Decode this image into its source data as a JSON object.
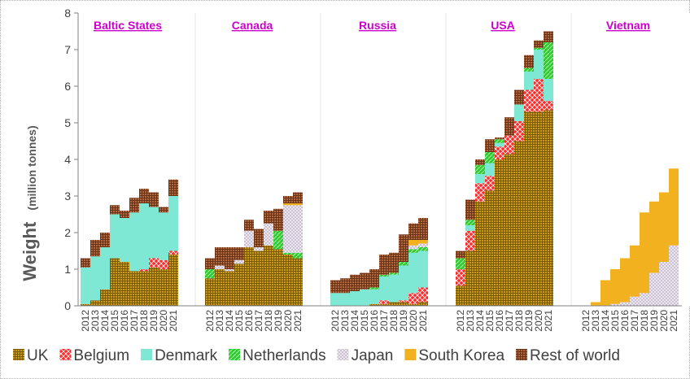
{
  "chart_data": {
    "type": "bar",
    "stacked": true,
    "ylabel": "Weight",
    "ylabel_unit": "(million tonnes)",
    "ylim": [
      0,
      8
    ],
    "yticks": [
      "0",
      "1",
      "2",
      "3",
      "4",
      "5",
      "6",
      "7",
      "8"
    ],
    "years": [
      "2012",
      "2013",
      "2014",
      "2015",
      "2016",
      "2017",
      "2018",
      "2019",
      "2020",
      "2021"
    ],
    "series": [
      {
        "name": "UK",
        "color": "#b8860b",
        "pattern": "grid"
      },
      {
        "name": "Belgium",
        "color": "#ff2020",
        "pattern": "cross"
      },
      {
        "name": "Denmark",
        "color": "#7ee8d4",
        "pattern": "solid"
      },
      {
        "name": "Netherlands",
        "color": "#22cc22",
        "pattern": "diag"
      },
      {
        "name": "Japan",
        "color": "#e4dce8",
        "pattern": "dots"
      },
      {
        "name": "South Korea",
        "color": "#f0b020",
        "pattern": "solid"
      },
      {
        "name": "Rest of world",
        "color": "#a0522d",
        "pattern": "grid"
      }
    ],
    "panels": [
      {
        "name": "Baltic States",
        "values": {
          "UK": [
            0.05,
            0.15,
            0.45,
            1.3,
            1.2,
            0.95,
            0.95,
            1.05,
            1.0,
            1.4
          ],
          "Belgium": [
            0,
            0,
            0,
            0,
            0,
            0,
            0.05,
            0.25,
            0.25,
            0.1
          ],
          "Denmark": [
            1.0,
            1.2,
            1.15,
            1.2,
            1.2,
            1.6,
            1.8,
            1.4,
            1.3,
            1.5
          ],
          "Netherlands": [
            0,
            0,
            0,
            0,
            0,
            0,
            0,
            0,
            0,
            0
          ],
          "Japan": [
            0,
            0,
            0,
            0,
            0,
            0,
            0,
            0,
            0,
            0
          ],
          "South Korea": [
            0,
            0,
            0,
            0,
            0,
            0,
            0,
            0,
            0,
            0
          ],
          "Rest of world": [
            0.25,
            0.45,
            0.4,
            0.25,
            0.2,
            0.4,
            0.4,
            0.4,
            0.15,
            0.45
          ]
        }
      },
      {
        "name": "Canada",
        "values": {
          "UK": [
            0.75,
            1.0,
            0.95,
            1.15,
            1.6,
            1.5,
            1.65,
            1.55,
            1.4,
            1.3
          ],
          "Belgium": [
            0,
            0,
            0,
            0,
            0,
            0,
            0,
            0,
            0,
            0
          ],
          "Denmark": [
            0,
            0,
            0,
            0,
            0,
            0,
            0,
            0,
            0,
            0
          ],
          "Netherlands": [
            0.25,
            0,
            0,
            0,
            0,
            0,
            0,
            0.5,
            0.05,
            0.15
          ],
          "Japan": [
            0,
            0.1,
            0.05,
            0.1,
            0.45,
            0.1,
            0.6,
            0.0,
            1.3,
            1.3
          ],
          "South Korea": [
            0,
            0,
            0,
            0,
            0,
            0,
            0,
            0,
            0.05,
            0.05
          ],
          "Rest of world": [
            0.3,
            0.5,
            0.6,
            0.35,
            0.3,
            0.5,
            0.35,
            0.6,
            0.2,
            0.3
          ]
        }
      },
      {
        "name": "Russia",
        "values": {
          "UK": [
            0,
            0,
            0,
            0,
            0.05,
            0.05,
            0.1,
            0.1,
            0.05,
            0.1
          ],
          "Belgium": [
            0,
            0,
            0,
            0,
            0,
            0.1,
            0,
            0.05,
            0.3,
            0.4
          ],
          "Denmark": [
            0.35,
            0.35,
            0.4,
            0.45,
            0.4,
            0.65,
            0.75,
            0.95,
            1.1,
            1.0
          ],
          "Netherlands": [
            0,
            0,
            0,
            0,
            0.05,
            0.05,
            0.05,
            0.1,
            0.1,
            0.1
          ],
          "Japan": [
            0,
            0,
            0,
            0,
            0,
            0,
            0,
            0,
            0.1,
            0.1
          ],
          "South Korea": [
            0,
            0,
            0,
            0,
            0,
            0,
            0,
            0,
            0.15,
            0.1
          ],
          "Rest of world": [
            0.35,
            0.4,
            0.45,
            0.45,
            0.5,
            0.55,
            0.55,
            0.75,
            0.45,
            0.6
          ]
        }
      },
      {
        "name": "USA",
        "values": {
          "UK": [
            0.55,
            1.5,
            2.85,
            3.15,
            4.0,
            4.15,
            4.5,
            5.3,
            5.3,
            5.35
          ],
          "Belgium": [
            0.45,
            0.55,
            0.5,
            0.4,
            0.35,
            0.5,
            0.55,
            0.6,
            0.9,
            0.25
          ],
          "Denmark": [
            0,
            0.15,
            0.25,
            0.35,
            0.1,
            0,
            0.45,
            0.5,
            0.8,
            0.6
          ],
          "Netherlands": [
            0.3,
            0.15,
            0.25,
            0.3,
            0.1,
            0,
            0.0,
            0.1,
            0.05,
            1.0
          ],
          "Japan": [
            0,
            0,
            0,
            0,
            0,
            0,
            0,
            0,
            0,
            0
          ],
          "South Korea": [
            0,
            0,
            0,
            0,
            0,
            0,
            0,
            0,
            0,
            0
          ],
          "Rest of world": [
            0.2,
            0.55,
            0.15,
            0.35,
            0.05,
            0.5,
            0.4,
            0.35,
            0.2,
            0.3
          ]
        }
      },
      {
        "name": "Vietnam",
        "values": {
          "UK": [
            0,
            0,
            0,
            0,
            0,
            0,
            0,
            0,
            0,
            0
          ],
          "Belgium": [
            0,
            0,
            0,
            0,
            0,
            0,
            0,
            0,
            0,
            0
          ],
          "Denmark": [
            0,
            0,
            0,
            0,
            0,
            0,
            0,
            0,
            0,
            0
          ],
          "Netherlands": [
            0,
            0,
            0,
            0,
            0,
            0,
            0,
            0,
            0,
            0
          ],
          "Japan": [
            0,
            0,
            0,
            0.05,
            0.1,
            0.25,
            0.35,
            0.9,
            1.2,
            1.65
          ],
          "South Korea": [
            0,
            0.1,
            0.7,
            0.95,
            1.2,
            1.4,
            2.2,
            1.95,
            1.9,
            2.1
          ],
          "Rest of world": [
            0,
            0,
            0,
            0,
            0,
            0,
            0,
            0,
            0,
            0
          ]
        }
      }
    ],
    "legend_position": "bottom"
  }
}
